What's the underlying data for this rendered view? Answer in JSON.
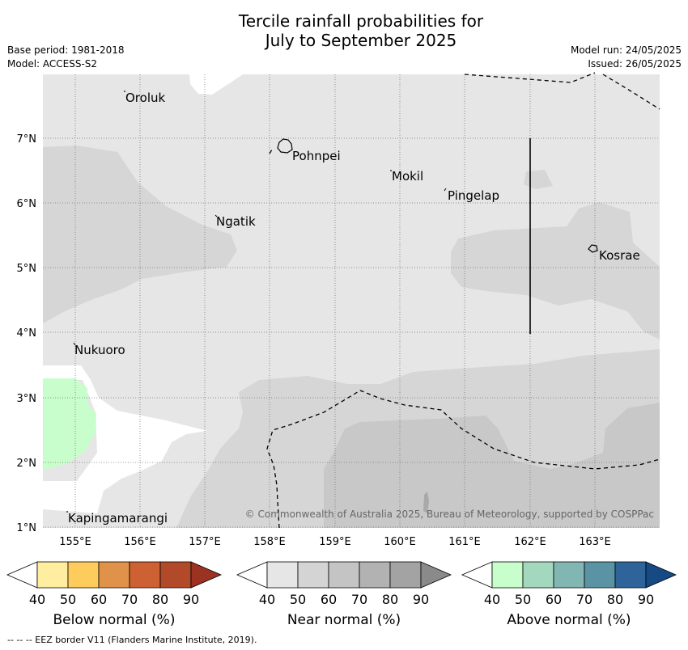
{
  "title_line1": "Tercile rainfall probabilities for",
  "title_line2": "July to September 2025",
  "base_period": "Base period: 1981-2018",
  "model": "Model: ACCESS-S2",
  "model_run": "Model run: 24/05/2025",
  "issued": "Issued: 26/05/2025",
  "copyright": "© Commonwealth of Australia 2025, Bureau of Meteorology, supported by COSPPac",
  "footer": "--  --  -- EEZ border V11 (Flanders Marine Institute, 2019).",
  "lon_labels": [
    "155°E",
    "156°E",
    "157°E",
    "158°E",
    "159°E",
    "160°E",
    "161°E",
    "162°E",
    "163°E"
  ],
  "lat_labels": [
    "7°N",
    "6°N",
    "5°N",
    "4°N",
    "3°N",
    "2°N",
    "1°N"
  ],
  "places": [
    {
      "name": "Oroluk"
    },
    {
      "name": "Pohnpei"
    },
    {
      "name": "Mokil"
    },
    {
      "name": "Pingelap"
    },
    {
      "name": "Ngatik"
    },
    {
      "name": "Kosrae"
    },
    {
      "name": "Nukuoro"
    },
    {
      "name": "Kapingamarangi"
    }
  ],
  "colorbars": [
    {
      "label": "Below normal (%)",
      "ticks": [
        "40",
        "50",
        "60",
        "70",
        "80",
        "90"
      ],
      "colors": [
        "#ffeda0",
        "#fecc5c",
        "#e0924a",
        "#cd6133",
        "#b24a29",
        "#9c3322"
      ]
    },
    {
      "label": "Near normal (%)",
      "ticks": [
        "40",
        "50",
        "60",
        "70",
        "80",
        "90"
      ],
      "colors": [
        "#e6e6e6",
        "#d4d4d4",
        "#c4c4c4",
        "#b2b2b2",
        "#a3a3a3",
        "#8a8a8a"
      ]
    },
    {
      "label": "Above normal (%)",
      "ticks": [
        "40",
        "50",
        "60",
        "70",
        "80",
        "90"
      ],
      "colors": [
        "#c7fecb",
        "#a3d8bf",
        "#82b6b2",
        "#5a93a3",
        "#2e6499",
        "#154a85"
      ]
    }
  ],
  "colors": {
    "near_40": "#e6e6e6",
    "near_50": "#d6d6d6",
    "near_60": "#c8c8c8",
    "near_70": "#a9a9a9",
    "above_40": "#c7fecb"
  }
}
